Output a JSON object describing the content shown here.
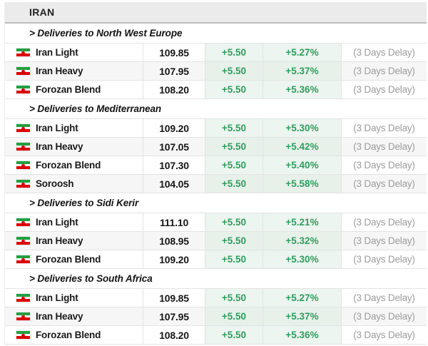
{
  "colors": {
    "green": "#2E9E5E",
    "green_cell_bg": "#ECF5EF",
    "delay_gray": "#9C9C9C",
    "header_bg": "#EBEBEB",
    "row_alt_bg": "#F6F6F6",
    "border": "#E3E3E3",
    "flag_green": "#239F40",
    "flag_red": "#DA0000"
  },
  "header": {
    "title": "IRAN"
  },
  "row_icon": "iran-flag-icon",
  "sections": [
    {
      "label": "> Deliveries to North West Europe",
      "rows": [
        {
          "name": "Iran Light",
          "price": "109.85",
          "change": "+5.50",
          "change_pct": "+5.27%",
          "delay": "(3 Days Delay)"
        },
        {
          "name": "Iran Heavy",
          "price": "107.95",
          "change": "+5.50",
          "change_pct": "+5.37%",
          "delay": "(3 Days Delay)"
        },
        {
          "name": "Forozan Blend",
          "price": "108.20",
          "change": "+5.50",
          "change_pct": "+5.36%",
          "delay": "(3 Days Delay)"
        }
      ]
    },
    {
      "label": "> Deliveries to Mediterranean",
      "rows": [
        {
          "name": "Iran Light",
          "price": "109.20",
          "change": "+5.50",
          "change_pct": "+5.30%",
          "delay": "(3 Days Delay)"
        },
        {
          "name": "Iran Heavy",
          "price": "107.05",
          "change": "+5.50",
          "change_pct": "+5.42%",
          "delay": "(3 Days Delay)"
        },
        {
          "name": "Forozan Blend",
          "price": "107.30",
          "change": "+5.50",
          "change_pct": "+5.40%",
          "delay": "(3 Days Delay)"
        },
        {
          "name": "Soroosh",
          "price": "104.05",
          "change": "+5.50",
          "change_pct": "+5.58%",
          "delay": "(3 Days Delay)"
        }
      ]
    },
    {
      "label": "> Deliveries to Sidi Kerir",
      "rows": [
        {
          "name": "Iran Light",
          "price": "111.10",
          "change": "+5.50",
          "change_pct": "+5.21%",
          "delay": "(3 Days Delay)"
        },
        {
          "name": "Iran Heavy",
          "price": "108.95",
          "change": "+5.50",
          "change_pct": "+5.32%",
          "delay": "(3 Days Delay)"
        },
        {
          "name": "Forozan Blend",
          "price": "109.20",
          "change": "+5.50",
          "change_pct": "+5.30%",
          "delay": "(3 Days Delay)"
        }
      ]
    },
    {
      "label": "> Deliveries to South Africa",
      "rows": [
        {
          "name": "Iran Light",
          "price": "109.85",
          "change": "+5.50",
          "change_pct": "+5.27%",
          "delay": "(3 Days Delay)"
        },
        {
          "name": "Iran Heavy",
          "price": "107.95",
          "change": "+5.50",
          "change_pct": "+5.37%",
          "delay": "(3 Days Delay)"
        },
        {
          "name": "Forozan Blend",
          "price": "108.20",
          "change": "+5.50",
          "change_pct": "+5.36%",
          "delay": "(3 Days Delay)"
        }
      ]
    }
  ]
}
